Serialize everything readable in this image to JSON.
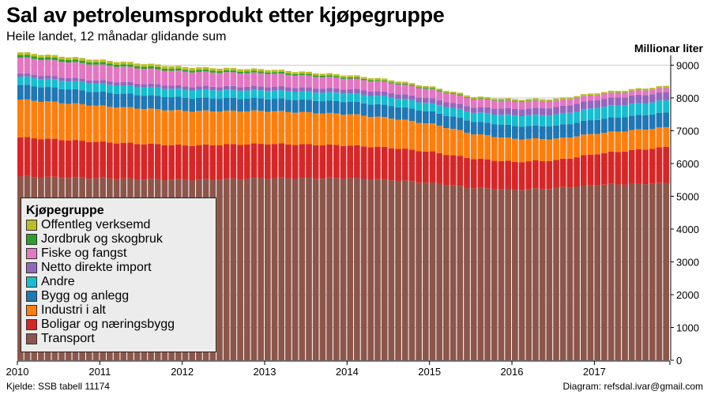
{
  "header": {
    "title": "Sal av petroleumsprodukt etter kjøpegruppe",
    "subtitle": "Heile landet, 12 månadar glidande sum"
  },
  "footer": {
    "source": "Kjelde: SSB tabell 11174",
    "credit": "Diagram: refsdal.ivar@gmail.com"
  },
  "chart_data": {
    "type": "bar",
    "stacked": true,
    "ylabel": "Millionar liter",
    "ylim": [
      0,
      9300
    ],
    "yticks": [
      0,
      1000,
      2000,
      3000,
      4000,
      5000,
      6000,
      7000,
      8000,
      9000
    ],
    "yaxis_position": "right",
    "grid": true,
    "legend_placement": "bottom-left",
    "legend_title": "Kjøpegruppe",
    "x_start": "2010-01",
    "x_end": "2017-11",
    "xticks": [
      "2010",
      "2011",
      "2012",
      "2013",
      "2014",
      "2015",
      "2016",
      "2017"
    ],
    "series_anchors_note": "Values given at anchor months; intermediate monthly bars vary smoothly between anchors.",
    "anchor_months": [
      "2010-01",
      "2011-01",
      "2012-01",
      "2013-01",
      "2014-01",
      "2014-07",
      "2015-01",
      "2015-07",
      "2016-01",
      "2016-07",
      "2017-01",
      "2017-11"
    ],
    "series": [
      {
        "name": "Transport",
        "color": "#8c564b",
        "values": [
          5600,
          5550,
          5500,
          5550,
          5550,
          5500,
          5400,
          5250,
          5200,
          5250,
          5350,
          5400
        ]
      },
      {
        "name": "Boligar og næringsbygg",
        "color": "#d62728",
        "values": [
          1200,
          1100,
          1050,
          1050,
          1000,
          980,
          950,
          900,
          850,
          850,
          950,
          1100
        ]
      },
      {
        "name": "Industri i alt",
        "color": "#ff7f0e",
        "values": [
          1150,
          1100,
          1050,
          1000,
          950,
          900,
          850,
          750,
          700,
          650,
          620,
          600
        ]
      },
      {
        "name": "Bygg og anlegg",
        "color": "#1f77b4",
        "values": [
          450,
          420,
          400,
          380,
          380,
          380,
          370,
          380,
          390,
          400,
          430,
          450
        ]
      },
      {
        "name": "Andre",
        "color": "#17becf",
        "values": [
          250,
          250,
          250,
          250,
          260,
          260,
          250,
          280,
          320,
          340,
          360,
          370
        ]
      },
      {
        "name": "Netto direkte import",
        "color": "#9467bd",
        "values": [
          100,
          100,
          100,
          120,
          130,
          140,
          150,
          160,
          200,
          220,
          240,
          250
        ]
      },
      {
        "name": "Fiske og fangst",
        "color": "#e377c2",
        "values": [
          480,
          480,
          450,
          400,
          320,
          300,
          280,
          250,
          230,
          200,
          150,
          130
        ]
      },
      {
        "name": "Jordbruk og skogbruk",
        "color": "#2ca02c",
        "values": [
          80,
          70,
          60,
          50,
          40,
          30,
          30,
          20,
          20,
          10,
          10,
          10
        ]
      },
      {
        "name": "Offentleg verksemd",
        "color": "#bcbd22",
        "values": [
          80,
          80,
          80,
          70,
          60,
          60,
          50,
          50,
          50,
          50,
          50,
          50
        ]
      }
    ]
  },
  "legend": {
    "title": "Kjøpegruppe",
    "items": [
      {
        "label": "Offentleg verksemd",
        "color": "#bcbd22"
      },
      {
        "label": "Jordbruk og skogbruk",
        "color": "#2ca02c"
      },
      {
        "label": "Fiske og fangst",
        "color": "#e377c2"
      },
      {
        "label": "Netto direkte import",
        "color": "#9467bd"
      },
      {
        "label": "Andre",
        "color": "#17becf"
      },
      {
        "label": "Bygg og anlegg",
        "color": "#1f77b4"
      },
      {
        "label": "Industri i alt",
        "color": "#ff7f0e"
      },
      {
        "label": "Boligar og næringsbygg",
        "color": "#d62728"
      },
      {
        "label": "Transport",
        "color": "#8c564b"
      }
    ]
  }
}
